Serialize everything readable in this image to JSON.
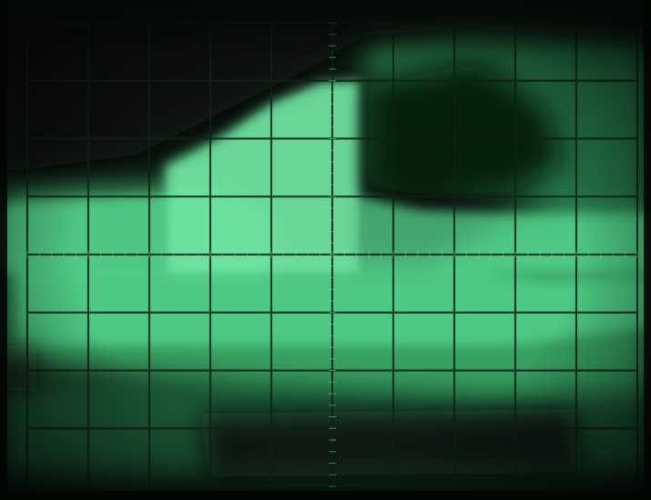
{
  "photo": {
    "subject": "oscilloscope-screen",
    "phosphor_color": "#5fd88c",
    "background_color": "#0a120c",
    "graticule": {
      "columns": 10,
      "rows": 8
    }
  }
}
